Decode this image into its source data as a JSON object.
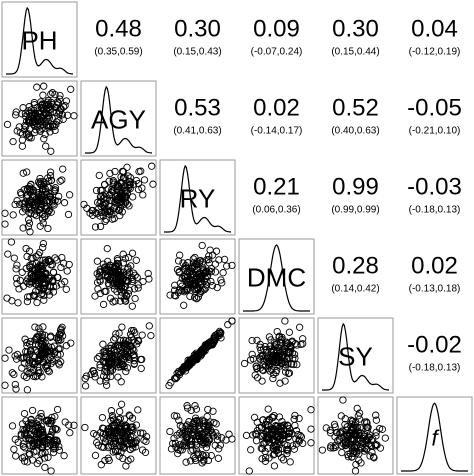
{
  "chart_data": {
    "type": "scatter-matrix",
    "variables": [
      "PH",
      "AGY",
      "RY",
      "DMC",
      "SY",
      "f"
    ],
    "correlations": [
      {
        "row": 0,
        "col": 1,
        "r": "0.48",
        "ci": "(0.35,0.59)"
      },
      {
        "row": 0,
        "col": 2,
        "r": "0.30",
        "ci": "(0.15,0.43)"
      },
      {
        "row": 0,
        "col": 3,
        "r": "0.09",
        "ci": "(-0.07,0.24)"
      },
      {
        "row": 0,
        "col": 4,
        "r": "0.30",
        "ci": "(0.15,0.44)"
      },
      {
        "row": 0,
        "col": 5,
        "r": "0.04",
        "ci": "(-0.12,0.19)"
      },
      {
        "row": 1,
        "col": 2,
        "r": "0.53",
        "ci": "(0.41,0.63)"
      },
      {
        "row": 1,
        "col": 3,
        "r": "0.02",
        "ci": "(-0.14,0.17)"
      },
      {
        "row": 1,
        "col": 4,
        "r": "0.52",
        "ci": "(0.40,0.63)"
      },
      {
        "row": 1,
        "col": 5,
        "r": "-0.05",
        "ci": "(-0.21,0.10)"
      },
      {
        "row": 2,
        "col": 3,
        "r": "0.21",
        "ci": "(0.06,0.36)"
      },
      {
        "row": 2,
        "col": 4,
        "r": "0.99",
        "ci": "(0.99,0.99)"
      },
      {
        "row": 2,
        "col": 5,
        "r": "-0.03",
        "ci": "(-0.18,0.13)"
      },
      {
        "row": 3,
        "col": 4,
        "r": "0.28",
        "ci": "(0.14,0.42)"
      },
      {
        "row": 3,
        "col": 5,
        "r": "0.02",
        "ci": "(-0.13,0.18)"
      },
      {
        "row": 4,
        "col": 5,
        "r": "-0.02",
        "ci": "(-0.18,0.13)"
      }
    ],
    "density_shapes": {
      "PH": "right-skewed",
      "AGY": "right-skewed",
      "RY": "right-skewed",
      "DMC": "symmetric",
      "SY": "right-skewed",
      "f": "symmetric"
    },
    "scatter_points_per_panel": 150,
    "grid": false,
    "legend": "none"
  }
}
